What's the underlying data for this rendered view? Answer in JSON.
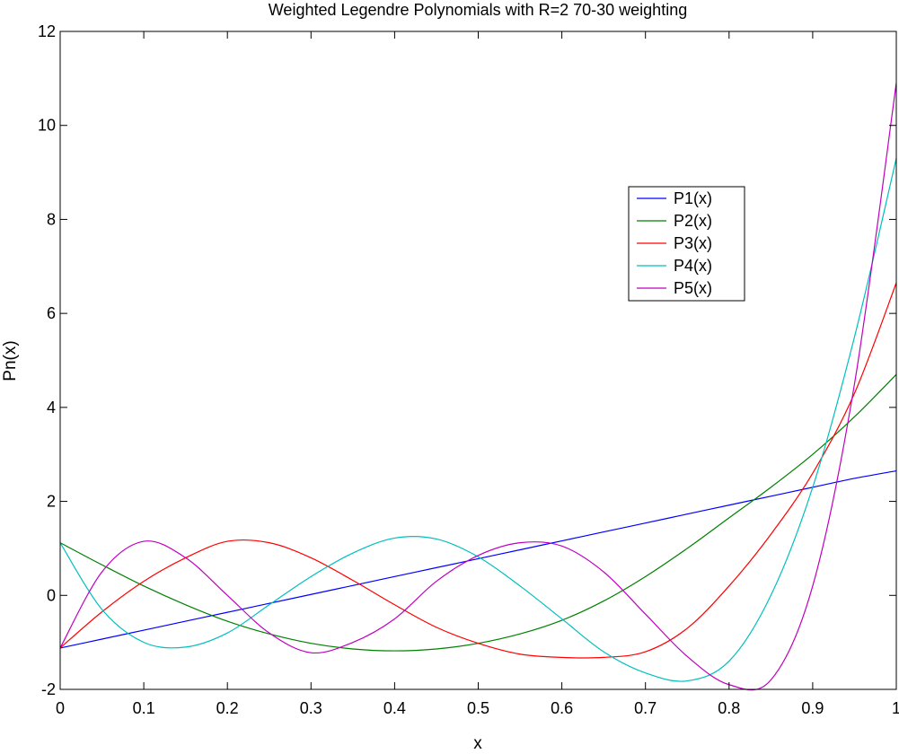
{
  "chart_data": {
    "type": "line",
    "title": "Weighted Legendre Polynomials with R=2 70-30 weighting",
    "xlabel": "x",
    "ylabel": "Pn(x)",
    "xlim": [
      0,
      1
    ],
    "ylim": [
      -2,
      12
    ],
    "xticks": [
      0,
      0.1,
      0.2,
      0.3,
      0.4,
      0.5,
      0.6,
      0.7,
      0.8,
      0.9,
      1
    ],
    "xtick_labels": [
      "0",
      "0.1",
      "0.2",
      "0.3",
      "0.4",
      "0.5",
      "0.6",
      "0.7",
      "0.8",
      "0.9",
      "1"
    ],
    "yticks": [
      -2,
      0,
      2,
      4,
      6,
      8,
      10,
      12
    ],
    "ytick_labels": [
      "-2",
      "0",
      "2",
      "4",
      "6",
      "8",
      "10",
      "12"
    ],
    "grid": false,
    "legend_position": "top-right",
    "x": [
      0,
      0.05,
      0.1,
      0.15,
      0.2,
      0.25,
      0.3,
      0.35,
      0.4,
      0.45,
      0.5,
      0.55,
      0.6,
      0.65,
      0.7,
      0.75,
      0.8,
      0.85,
      0.9,
      0.95,
      1
    ],
    "series": [
      {
        "name": "P1(x)",
        "color": "#0000ff",
        "values": [
          -1.12,
          -0.93,
          -0.74,
          -0.55,
          -0.36,
          -0.17,
          0.02,
          0.21,
          0.4,
          0.59,
          0.78,
          0.97,
          1.16,
          1.35,
          1.54,
          1.73,
          1.92,
          2.11,
          2.3,
          2.49,
          2.65
        ]
      },
      {
        "name": "P2(x)",
        "color": "#008000",
        "values": [
          1.12,
          0.65,
          0.2,
          -0.2,
          -0.55,
          -0.82,
          -1.02,
          -1.14,
          -1.18,
          -1.14,
          -1.02,
          -0.82,
          -0.53,
          -0.12,
          0.4,
          1.0,
          1.65,
          2.3,
          3.0,
          3.8,
          4.7
        ]
      },
      {
        "name": "P3(x)",
        "color": "#ff0000",
        "values": [
          -1.12,
          -0.35,
          0.3,
          0.8,
          1.15,
          1.12,
          0.8,
          0.32,
          -0.2,
          -0.68,
          -1.02,
          -1.25,
          -1.32,
          -1.32,
          -1.2,
          -0.7,
          0.2,
          1.3,
          2.6,
          4.3,
          6.65
        ]
      },
      {
        "name": "P4(x)",
        "color": "#00bfbf",
        "values": [
          1.12,
          -0.3,
          -1.0,
          -1.1,
          -0.8,
          -0.2,
          0.4,
          0.9,
          1.22,
          1.2,
          0.82,
          0.2,
          -0.5,
          -1.2,
          -1.65,
          -1.82,
          -1.4,
          0.0,
          2.3,
          5.5,
          9.3
        ]
      },
      {
        "name": "P5(x)",
        "color": "#bf00bf",
        "values": [
          -1.12,
          0.5,
          1.15,
          0.8,
          0.0,
          -0.8,
          -1.22,
          -1.0,
          -0.5,
          0.3,
          0.85,
          1.12,
          1.05,
          0.5,
          -0.4,
          -1.3,
          -1.9,
          -1.8,
          0.2,
          4.5,
          10.9
        ]
      }
    ]
  }
}
